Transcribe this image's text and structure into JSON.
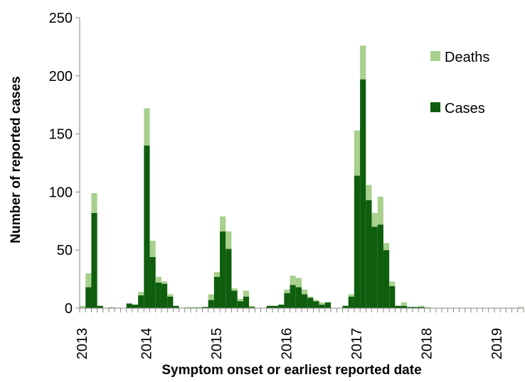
{
  "chart_data": {
    "type": "bar",
    "stacked": true,
    "xlabel": "Symptom onset or earliest reported date",
    "ylabel": "Number of reported cases",
    "ylim": [
      0,
      250
    ],
    "yticks": [
      0,
      50,
      100,
      150,
      200,
      250
    ],
    "x_year_labels": [
      "2013",
      "2014",
      "2015",
      "2016",
      "2017",
      "2018",
      "2019"
    ],
    "bin": "month",
    "start_month": "2013-02",
    "grid": false,
    "legend_position": "top-right",
    "colors": {
      "cases": "#0e5e0e",
      "deaths": "#a8d08d"
    },
    "series": [
      {
        "name": "Cases",
        "values": [
          0,
          18,
          82,
          2,
          0,
          0,
          0,
          0,
          4,
          3,
          11,
          140,
          44,
          22,
          21,
          10,
          2,
          0,
          0,
          0,
          0,
          1,
          7,
          27,
          66,
          51,
          15,
          6,
          10,
          1,
          0,
          0,
          2,
          2,
          3,
          13,
          20,
          18,
          12,
          9,
          6,
          3,
          5,
          0,
          0,
          2,
          10,
          114,
          197,
          93,
          70,
          72,
          50,
          19,
          2,
          2,
          1,
          1,
          1,
          0,
          0,
          0,
          0,
          0,
          0,
          0,
          0,
          0,
          0,
          0,
          0,
          0,
          0,
          0,
          0,
          0
        ]
      },
      {
        "name": "Deaths",
        "values": [
          2,
          12,
          17,
          0,
          0,
          1,
          0,
          0,
          0,
          0,
          3,
          32,
          14,
          5,
          2,
          2,
          0,
          0,
          1,
          1,
          1,
          0,
          5,
          4,
          13,
          15,
          2,
          2,
          5,
          1,
          0,
          0,
          0,
          0,
          0,
          3,
          8,
          8,
          4,
          1,
          1,
          2,
          0,
          0,
          0,
          0,
          2,
          39,
          29,
          13,
          12,
          24,
          6,
          4,
          0,
          3,
          0,
          0,
          1,
          1,
          0,
          0,
          0,
          0,
          0,
          0,
          0,
          0,
          0,
          0,
          0,
          0,
          0,
          0,
          0,
          1
        ]
      }
    ]
  }
}
